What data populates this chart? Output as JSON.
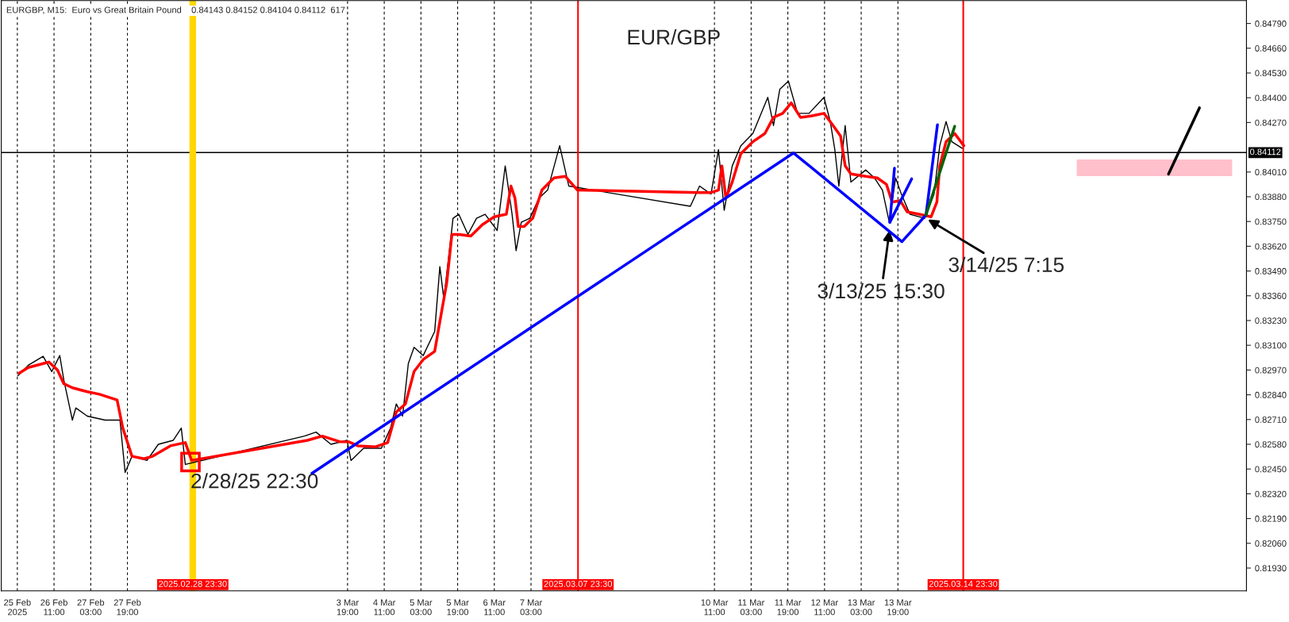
{
  "chart_data": {
    "type": "line",
    "title": "EUR/GBP",
    "subtitle": "EURGBP, M15:  Euro vs Great Britain Pound    0.84143 0.84152 0.84104 0.84112  617",
    "xlim": [
      "2025-02-25T12:00",
      "2025-03-20T03:00"
    ],
    "ylim": [
      0.8181,
      0.8491
    ],
    "xticks": [
      {
        "value": "2025-02-25T19:00",
        "label": "25 Feb 2025"
      },
      {
        "value": "2025-02-26T11:00",
        "label": "26 Feb 11:00"
      },
      {
        "value": "2025-02-27T03:00",
        "label": "27 Feb 03:00"
      },
      {
        "value": "2025-02-27T19:00",
        "label": "27 Feb 19:00"
      },
      {
        "value": "2025-03-03T19:00",
        "label": "3 Mar 19:00"
      },
      {
        "value": "2025-03-04T11:00",
        "label": "4 Mar 11:00"
      },
      {
        "value": "2025-03-05T03:00",
        "label": "5 Mar 03:00"
      },
      {
        "value": "2025-03-05T19:00",
        "label": "5 Mar 19:00"
      },
      {
        "value": "2025-03-06T11:00",
        "label": "6 Mar 11:00"
      },
      {
        "value": "2025-03-07T03:00",
        "label": "7 Mar 03:00"
      },
      {
        "value": "2025-03-10T11:00",
        "label": "10 Mar 11:00"
      },
      {
        "value": "2025-03-11T03:00",
        "label": "11 Mar 03:00"
      },
      {
        "value": "2025-03-11T19:00",
        "label": "11 Mar 19:00"
      },
      {
        "value": "2025-03-12T11:00",
        "label": "12 Mar 11:00"
      },
      {
        "value": "2025-03-13T03:00",
        "label": "13 Mar 03:00"
      },
      {
        "value": "2025-03-13T19:00",
        "label": "13 Mar 19:00"
      }
    ],
    "yticks": [
      {
        "value": 0.8193,
        "label": "0.81930"
      },
      {
        "value": 0.8206,
        "label": "0.82060"
      },
      {
        "value": 0.8219,
        "label": "0.82190"
      },
      {
        "value": 0.8232,
        "label": "0.82320"
      },
      {
        "value": 0.8245,
        "label": "0.82450"
      },
      {
        "value": 0.8258,
        "label": "0.82580"
      },
      {
        "value": 0.8271,
        "label": "0.82710"
      },
      {
        "value": 0.8284,
        "label": "0.82840"
      },
      {
        "value": 0.8297,
        "label": "0.82970"
      },
      {
        "value": 0.831,
        "label": "0.83100"
      },
      {
        "value": 0.8323,
        "label": "0.83230"
      },
      {
        "value": 0.8336,
        "label": "0.83360"
      },
      {
        "value": 0.8349,
        "label": "0.83490"
      },
      {
        "value": 0.8362,
        "label": "0.83620"
      },
      {
        "value": 0.8375,
        "label": "0.83750"
      },
      {
        "value": 0.8388,
        "label": "0.83880"
      },
      {
        "value": 0.8401,
        "label": "0.84010"
      },
      {
        "value": 0.8427,
        "label": "0.84270"
      },
      {
        "value": 0.844,
        "label": "0.84400"
      },
      {
        "value": 0.8453,
        "label": "0.84530"
      },
      {
        "value": 0.8466,
        "label": "0.84660"
      },
      {
        "value": 0.8479,
        "label": "0.84790"
      }
    ],
    "grid": "x",
    "series": [
      {
        "color": "#000000",
        "x": [
          "2025-02-25T19:15",
          "2025-02-25T23:45",
          "2025-02-26T06:15",
          "2025-02-26T10:00",
          "2025-02-26T13:30",
          "2025-02-26T15:15",
          "2025-02-26T19:00",
          "2025-02-26T20:30",
          "2025-02-27T01:30",
          "2025-02-27T09:15",
          "2025-02-27T15:45",
          "2025-02-27T18:00",
          "2025-02-27T21:00",
          "2025-02-28T03:30",
          "2025-02-28T08:30",
          "2025-02-28T15:00",
          "2025-02-28T18:30",
          "2025-02-28T20:15",
          "2025-03-03T00:15",
          "2025-03-03T05:15",
          "2025-03-03T11:45",
          "2025-03-03T18:45",
          "2025-03-03T20:30",
          "2025-03-04T02:00",
          "2025-03-04T09:45",
          "2025-03-04T13:45",
          "2025-03-04T16:15",
          "2025-03-04T19:00",
          "2025-03-04T21:30",
          "2025-03-05T00:00",
          "2025-03-05T04:00",
          "2025-03-05T09:00",
          "2025-03-05T11:15",
          "2025-03-05T13:00",
          "2025-03-05T17:00",
          "2025-03-05T19:30",
          "2025-03-05T23:30",
          "2025-03-06T03:15",
          "2025-03-06T07:00",
          "2025-03-06T12:15",
          "2025-03-06T15:45",
          "2025-03-06T18:45",
          "2025-03-06T20:30",
          "2025-03-06T22:45",
          "2025-03-07T02:30",
          "2025-03-07T06:30",
          "2025-03-07T10:15",
          "2025-03-07T15:30",
          "2025-03-07T19:30",
          "2025-03-10T00:30",
          "2025-03-10T04:30",
          "2025-03-10T09:30",
          "2025-03-10T12:45",
          "2025-03-10T15:15",
          "2025-03-10T18:45",
          "2025-03-10T22:30",
          "2025-03-11T03:45",
          "2025-03-11T10:15",
          "2025-03-11T12:45",
          "2025-03-11T15:30",
          "2025-03-11T19:15",
          "2025-03-11T23:15",
          "2025-03-12T04:15",
          "2025-03-12T10:45",
          "2025-03-12T13:30",
          "2025-03-12T15:30",
          "2025-03-12T17:15",
          "2025-03-12T20:00",
          "2025-03-12T22:30",
          "2025-03-13T05:00",
          "2025-03-13T08:45",
          "2025-03-13T12:15",
          "2025-03-13T15:15",
          "2025-03-13T18:00",
          "2025-03-13T20:30",
          "2025-03-14T00:15",
          "2025-03-14T06:45",
          "2025-03-14T10:45",
          "2025-03-14T13:15",
          "2025-03-14T16:00",
          "2025-03-14T18:30",
          "2025-03-14T23:00"
        ],
        "values": [
          0.8294,
          0.82995,
          0.83042,
          0.82962,
          0.83046,
          0.82919,
          0.82707,
          0.82771,
          0.82728,
          0.82707,
          0.82707,
          0.82432,
          0.82517,
          0.82495,
          0.8258,
          0.82601,
          0.82665,
          0.82474,
          0.82623,
          0.82644,
          0.8258,
          0.82601,
          0.82495,
          0.82559,
          0.82559,
          0.82665,
          0.82792,
          0.82728,
          0.83004,
          0.83089,
          0.83046,
          0.83173,
          0.83513,
          0.83343,
          0.83767,
          0.83788,
          0.83682,
          0.83767,
          0.83788,
          0.83703,
          0.84042,
          0.83788,
          0.83597,
          0.83746,
          0.83767,
          0.83873,
          0.83915,
          0.84148,
          0.83936,
          0.8383,
          0.83936,
          0.83894,
          0.84127,
          0.83809,
          0.84042,
          0.84148,
          0.84212,
          0.84402,
          0.84254,
          0.84445,
          0.84487,
          0.84318,
          0.84318,
          0.84402,
          0.84275,
          0.84127,
          0.83936,
          0.84254,
          0.83957,
          0.84021,
          0.83979,
          0.83915,
          0.83746,
          0.83979,
          0.83894,
          0.83788,
          0.83767,
          0.83894,
          0.84148,
          0.84275,
          0.84169,
          0.84135
        ]
      },
      {
        "color": "#ff0000",
        "x": [
          "2025-02-25T19:45",
          "2025-02-25T23:45",
          "2025-02-26T06:15",
          "2025-02-26T08:45",
          "2025-02-26T12:30",
          "2025-02-26T15:15",
          "2025-02-26T19:00",
          "2025-02-27T01:30",
          "2025-02-27T06:45",
          "2025-02-27T14:30",
          "2025-02-27T17:00",
          "2025-02-27T21:00",
          "2025-02-28T02:15",
          "2025-02-28T06:00",
          "2025-02-28T13:45",
          "2025-02-28T20:15",
          "2025-02-28T23:00",
          "2025-03-03T01:30",
          "2025-03-03T08:00",
          "2025-03-03T15:45",
          "2025-03-03T19:30",
          "2025-03-03T23:30",
          "2025-03-04T07:15",
          "2025-03-04T12:30",
          "2025-03-04T16:15",
          "2025-03-04T20:15",
          "2025-03-05T00:00",
          "2025-03-05T04:00",
          "2025-03-05T09:00",
          "2025-03-05T11:45",
          "2025-03-05T14:15",
          "2025-03-05T16:30",
          "2025-03-05T19:30",
          "2025-03-06T00:45",
          "2025-03-06T05:45",
          "2025-03-06T11:00",
          "2025-03-06T16:15",
          "2025-03-06T18:15",
          "2025-03-06T20:00",
          "2025-03-06T21:30",
          "2025-03-07T00:00",
          "2025-03-07T03:45",
          "2025-03-07T07:45",
          "2025-03-07T13:00",
          "2025-03-07T18:00",
          "2025-03-07T23:15",
          "2025-03-10T04:30",
          "2025-03-10T09:30",
          "2025-03-10T12:45",
          "2025-03-10T14:15",
          "2025-03-10T16:00",
          "2025-03-10T18:45",
          "2025-03-10T22:30",
          "2025-03-11T03:45",
          "2025-03-11T09:00",
          "2025-03-11T12:45",
          "2025-03-11T16:45",
          "2025-03-11T20:30",
          "2025-03-12T00:30",
          "2025-03-12T05:30",
          "2025-03-12T10:45",
          "2025-03-12T14:45",
          "2025-03-12T18:00",
          "2025-03-12T20:00",
          "2025-03-12T22:30",
          "2025-03-13T05:00",
          "2025-03-13T10:00",
          "2025-03-13T14:00",
          "2025-03-13T16:30",
          "2025-03-13T20:00",
          "2025-03-13T23:00",
          "2025-03-14T04:15",
          "2025-03-14T09:30",
          "2025-03-14T12:00",
          "2025-03-14T13:15",
          "2025-03-14T16:00",
          "2025-03-14T19:45",
          "2025-03-14T23:45"
        ],
        "values": [
          0.82953,
          0.82983,
          0.83004,
          0.83012,
          0.8297,
          0.82898,
          0.82877,
          0.82856,
          0.82843,
          0.82813,
          0.82665,
          0.82517,
          0.82504,
          0.82517,
          0.82572,
          0.82589,
          0.82495,
          0.82601,
          0.82623,
          0.82593,
          0.82593,
          0.82572,
          0.82567,
          0.82589,
          0.8275,
          0.82792,
          0.82962,
          0.83025,
          0.83068,
          0.83258,
          0.83428,
          0.83682,
          0.83682,
          0.83674,
          0.83733,
          0.83775,
          0.83788,
          0.83936,
          0.83873,
          0.83724,
          0.83724,
          0.83767,
          0.83915,
          0.83979,
          0.83987,
          0.83915,
          0.83902,
          0.83902,
          0.83915,
          0.84042,
          0.83873,
          0.83957,
          0.84106,
          0.84169,
          0.84212,
          0.84297,
          0.84318,
          0.84373,
          0.84297,
          0.84305,
          0.84318,
          0.84254,
          0.84199,
          0.84042,
          0.84,
          0.83987,
          0.83979,
          0.83945,
          0.83852,
          0.8386,
          0.83801,
          0.83788,
          0.83775,
          0.83852,
          0.84042,
          0.84169,
          0.84212,
          0.84148
        ]
      },
      {
        "color": "#0000ff",
        "x": [
          "2025-03-03T03:30",
          "2025-03-11T21:30",
          "2025-03-13T20:45",
          "2025-03-14T07:15",
          "2025-03-14T12:15"
        ],
        "values": [
          0.82428,
          0.8411,
          0.83644,
          0.83784,
          0.84258
        ]
      },
      {
        "color": "#0000ff",
        "x": [
          "2025-03-13T15:30",
          "2025-03-13T17:30"
        ],
        "values": [
          0.83746,
          0.8403
        ]
      },
      {
        "color": "#0000ff",
        "x": [
          "2025-03-13T15:30",
          "2025-03-14T01:00"
        ],
        "values": [
          0.83746,
          0.83974
        ]
      },
      {
        "color": "#006400",
        "x": [
          "2025-03-14T07:15",
          "2025-03-14T19:45"
        ],
        "values": [
          0.83784,
          0.8425
        ]
      },
      {
        "color": "#000000",
        "x": [
          "2025-03-18T17:00",
          "2025-03-19T06:30"
        ],
        "values": [
          0.83999,
          0.84347
        ]
      },
      {
        "color": "#ffc0cb",
        "x": [
          "2025-03-17T01:00",
          "2025-03-19T20:45"
        ],
        "values": [
          0.84032,
          0.84032
        ]
      },
      {
        "type": "scatter",
        "color": "#ff0000",
        "marker": "square",
        "x": [
          "2025-02-28T22:30"
        ],
        "values": [
          0.82487
        ]
      }
    ],
    "ref_lines": [
      {
        "axis": "y",
        "value": 0.84112,
        "label": "0.84112",
        "color": "#000000"
      },
      {
        "axis": "x",
        "value": "2025-02-28T23:30",
        "label": "2025.02.28 23:30",
        "color": "#ffd700"
      },
      {
        "axis": "x",
        "value": "2025-03-07T23:30",
        "label": "2025.03.07 23:30",
        "color": "#ff0000"
      },
      {
        "axis": "x",
        "value": "2025-03-14T23:30",
        "label": "2025.03.14 23:30",
        "color": "#ff0000"
      }
    ],
    "annotations": [
      {
        "text": "2/28/25 22:30",
        "x": "2025-02-28T22:30",
        "y": 0.82487
      },
      {
        "text": "3/13/25 15:30",
        "x": "2025-03-13T15:30",
        "y": 0.83716
      },
      {
        "text": "3/14/25 7:15",
        "x": "2025-03-14T07:15",
        "y": 0.83767
      }
    ]
  }
}
